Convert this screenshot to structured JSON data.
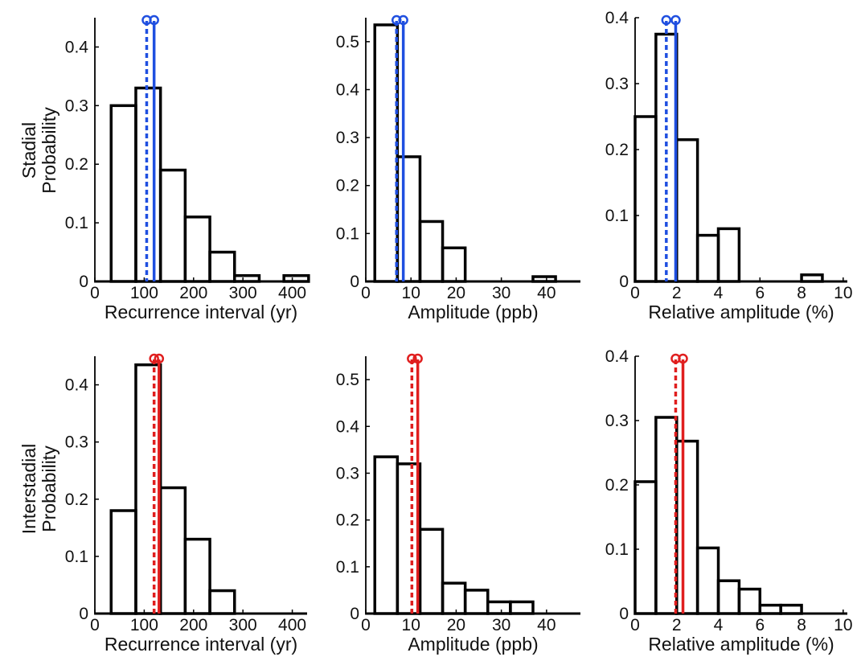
{
  "row_labels": [
    {
      "line1": "Stadial",
      "line2": "Probability"
    },
    {
      "line1": "Interstadial",
      "line2": "Probability"
    }
  ],
  "colors": {
    "stadial": "#1f4fe0",
    "interstadial": "#e01e1e",
    "bars": "#000000"
  },
  "chart_data": [
    {
      "type": "bar",
      "subtype": "histogram",
      "xlabel": "Recurrence interval (yr)",
      "ylabel": "",
      "xlim": [
        0,
        430
      ],
      "ylim": [
        0,
        0.45
      ],
      "xticks": [
        0,
        100,
        200,
        300,
        400
      ],
      "yticks": [
        0,
        0.1,
        0.2,
        0.3,
        0.4
      ],
      "bin_edges": [
        33,
        83,
        133,
        183,
        233,
        283,
        333,
        383,
        433
      ],
      "values": [
        0.3,
        0.33,
        0.19,
        0.11,
        0.05,
        0.01,
        0.0,
        0.01
      ],
      "markers": [
        {
          "x": 105,
          "style": "dotted"
        },
        {
          "x": 120,
          "style": "solid"
        }
      ],
      "marker_color": "#1f4fe0"
    },
    {
      "type": "bar",
      "subtype": "histogram",
      "xlabel": "Amplitude (ppb)",
      "ylabel": "",
      "xlim": [
        0,
        47.5
      ],
      "ylim": [
        0,
        0.55
      ],
      "xticks": [
        0,
        10,
        20,
        30,
        40
      ],
      "yticks": [
        0,
        0.1,
        0.2,
        0.3,
        0.4,
        0.5
      ],
      "bin_edges": [
        2,
        7,
        12,
        17,
        22,
        27,
        32,
        37,
        42,
        47
      ],
      "values": [
        0.535,
        0.26,
        0.125,
        0.07,
        0.0,
        0.0,
        0.0,
        0.01,
        0.0
      ],
      "markers": [
        {
          "x": 6.8,
          "style": "dotted"
        },
        {
          "x": 8.3,
          "style": "solid"
        }
      ],
      "marker_color": "#1f4fe0"
    },
    {
      "type": "bar",
      "subtype": "histogram",
      "xlabel": "Relative amplitude (%)",
      "ylabel": "",
      "xlim": [
        0,
        10.2
      ],
      "ylim": [
        0,
        0.4
      ],
      "xticks": [
        0,
        2,
        4,
        6,
        8,
        10
      ],
      "yticks": [
        0,
        0.1,
        0.2,
        0.3,
        0.4
      ],
      "bin_edges": [
        0,
        1,
        2,
        3,
        4,
        5,
        6,
        7,
        8,
        9,
        10
      ],
      "values": [
        0.25,
        0.375,
        0.215,
        0.07,
        0.08,
        0.0,
        0.0,
        0.0,
        0.01,
        0.0
      ],
      "markers": [
        {
          "x": 1.5,
          "style": "dotted"
        },
        {
          "x": 1.95,
          "style": "solid"
        }
      ],
      "marker_color": "#1f4fe0"
    },
    {
      "type": "bar",
      "subtype": "histogram",
      "xlabel": "Recurrence interval (yr)",
      "ylabel": "",
      "xlim": [
        0,
        430
      ],
      "ylim": [
        0,
        0.45
      ],
      "xticks": [
        0,
        100,
        200,
        300,
        400
      ],
      "yticks": [
        0,
        0.1,
        0.2,
        0.3,
        0.4
      ],
      "bin_edges": [
        33,
        83,
        133,
        183,
        233,
        283,
        333,
        383,
        433
      ],
      "values": [
        0.18,
        0.435,
        0.22,
        0.13,
        0.04,
        0.0,
        0.0,
        0.0
      ],
      "markers": [
        {
          "x": 120,
          "style": "dotted"
        },
        {
          "x": 130,
          "style": "solid"
        }
      ],
      "marker_color": "#e01e1e"
    },
    {
      "type": "bar",
      "subtype": "histogram",
      "xlabel": "Amplitude (ppb)",
      "ylabel": "",
      "xlim": [
        0,
        47.5
      ],
      "ylim": [
        0,
        0.55
      ],
      "xticks": [
        0,
        10,
        20,
        30,
        40
      ],
      "yticks": [
        0,
        0.1,
        0.2,
        0.3,
        0.4,
        0.5
      ],
      "bin_edges": [
        2,
        7,
        12,
        17,
        22,
        27,
        32,
        37,
        42,
        47
      ],
      "values": [
        0.335,
        0.32,
        0.18,
        0.065,
        0.05,
        0.025,
        0.025,
        0.0,
        0.0
      ],
      "markers": [
        {
          "x": 10.2,
          "style": "dotted"
        },
        {
          "x": 11.5,
          "style": "solid"
        }
      ],
      "marker_color": "#e01e1e"
    },
    {
      "type": "bar",
      "subtype": "histogram",
      "xlabel": "Relative amplitude (%)",
      "ylabel": "",
      "xlim": [
        0,
        10.2
      ],
      "ylim": [
        0,
        0.4
      ],
      "xticks": [
        0,
        2,
        4,
        6,
        8,
        10
      ],
      "yticks": [
        0,
        0.1,
        0.2,
        0.3,
        0.4
      ],
      "bin_edges": [
        0,
        1,
        2,
        3,
        4,
        5,
        6,
        7,
        8,
        9,
        10
      ],
      "values": [
        0.205,
        0.305,
        0.268,
        0.102,
        0.051,
        0.038,
        0.013,
        0.013,
        0.0,
        0.0
      ],
      "markers": [
        {
          "x": 1.95,
          "style": "dotted"
        },
        {
          "x": 2.3,
          "style": "solid"
        }
      ],
      "marker_color": "#e01e1e"
    }
  ]
}
